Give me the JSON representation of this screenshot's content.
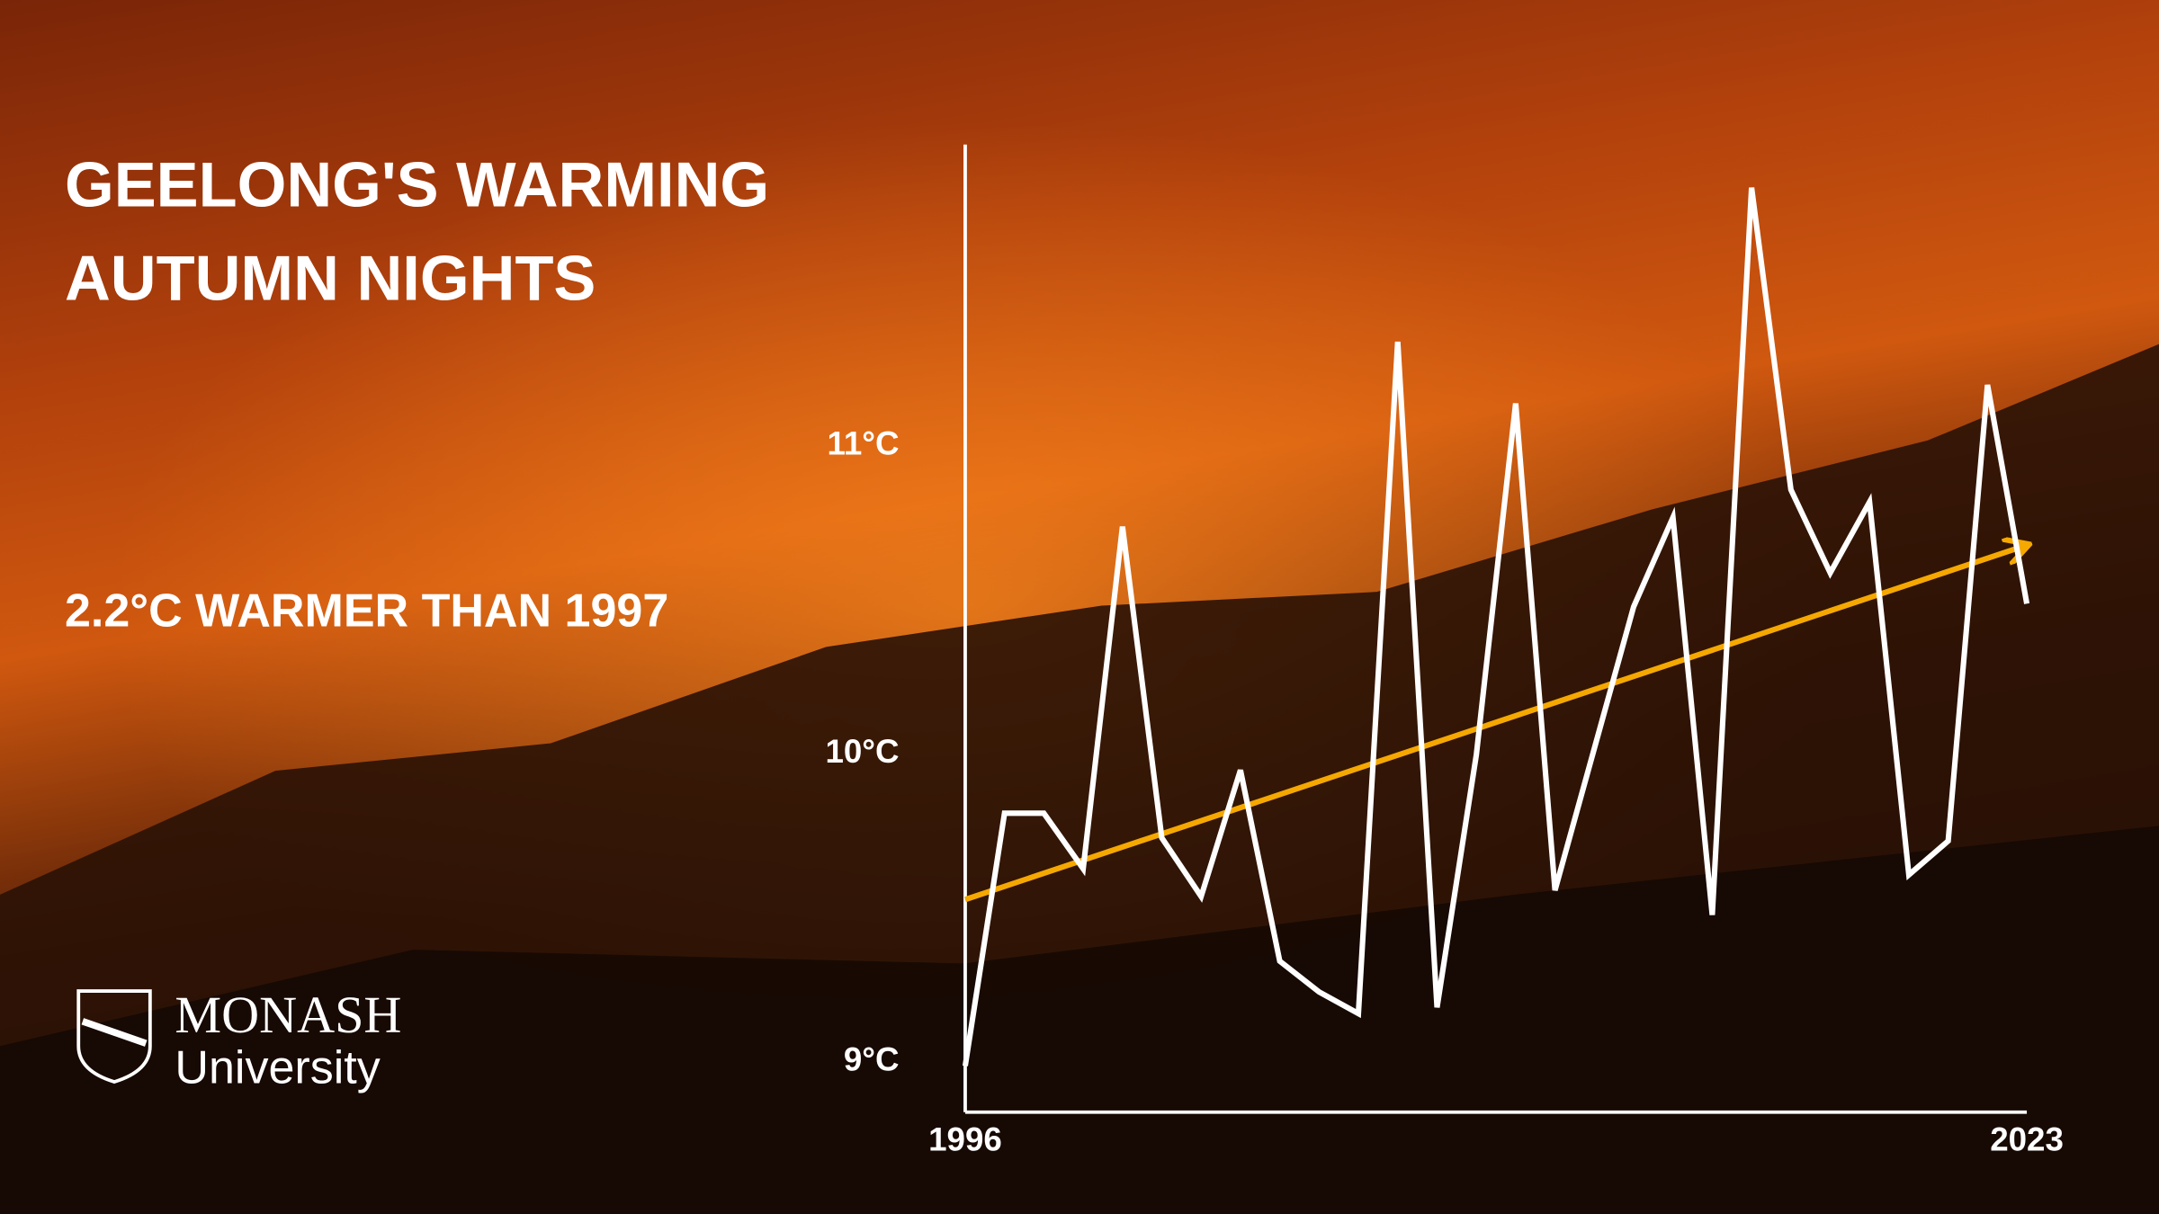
{
  "chart_data": {
    "type": "line",
    "title": [
      "GEELONG'S WARMING",
      "AUTUMN NIGHTS"
    ],
    "subtitle": "2.2°C WARMER THAN 1997",
    "x": [
      1996,
      1997,
      1998,
      1999,
      2000,
      2001,
      2002,
      2003,
      2004,
      2005,
      2006,
      2007,
      2008,
      2009,
      2010,
      2011,
      2012,
      2013,
      2014,
      2015,
      2016,
      2017,
      2018,
      2019,
      2020,
      2021,
      2022,
      2023
    ],
    "series": [
      {
        "color": "#ffffff",
        "values": [
          8.98,
          9.8,
          9.8,
          9.62,
          10.73,
          9.72,
          9.53,
          9.94,
          9.32,
          9.22,
          9.15,
          11.33,
          9.17,
          9.99,
          11.13,
          9.55,
          10.01,
          10.47,
          10.76,
          9.47,
          11.83,
          10.85,
          10.58,
          10.81,
          9.6,
          9.71,
          11.19,
          10.48
        ]
      }
    ],
    "trend": {
      "color": "#f5a800",
      "x": [
        1996,
        2023
      ],
      "values": [
        9.52,
        10.67
      ]
    },
    "xlim": [
      1996,
      2023
    ],
    "xticks": [
      1996,
      2023
    ],
    "ylim": [
      8.83,
      11.97
    ],
    "yticks": [
      {
        "value": 9,
        "label": "9°C"
      },
      {
        "value": 10,
        "label": "10°C"
      },
      {
        "value": 11,
        "label": "11°C"
      }
    ],
    "grid": false
  },
  "logo": {
    "name": "MONASH",
    "subname": "University"
  }
}
